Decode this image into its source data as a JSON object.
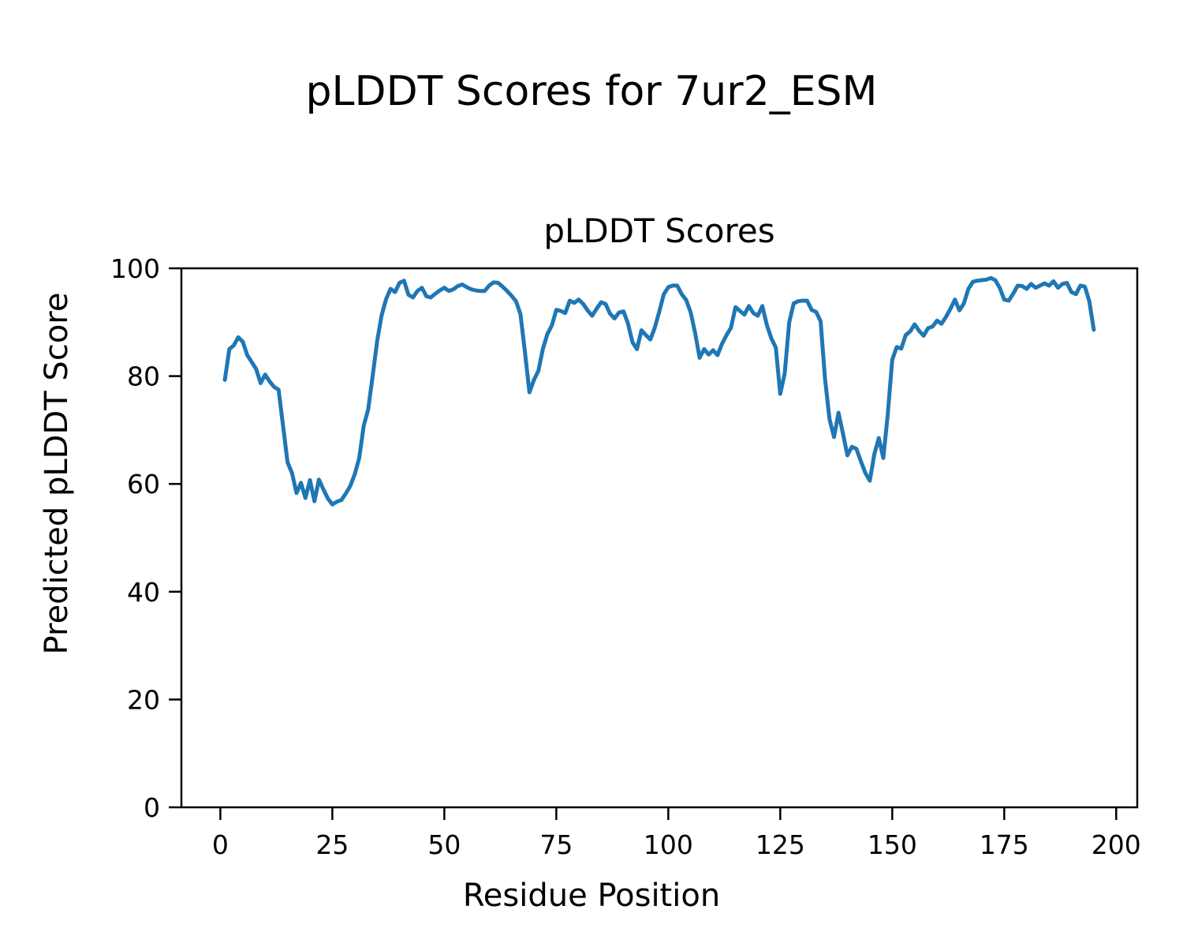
{
  "figure": {
    "background": "#ffffff",
    "text_color": "#000000"
  },
  "chart_data": {
    "type": "line",
    "suptitle": "pLDDT Scores for 7ur2_ESM",
    "title": "pLDDT Scores",
    "xlabel": "Residue Position",
    "ylabel": "Predicted pLDDT Score",
    "grid": false,
    "legend_position": "none",
    "xlim": [
      -8.7,
      204.7
    ],
    "ylim": [
      0,
      100
    ],
    "xticks": [
      0,
      25,
      50,
      75,
      100,
      125,
      150,
      175,
      200
    ],
    "yticks": [
      0,
      20,
      40,
      60,
      80,
      100
    ],
    "series": [
      {
        "name": "pLDDT",
        "color": "#1f77b4",
        "x_start": 1,
        "x_step": 1,
        "values": [
          79.3,
          85.0,
          85.7,
          87.2,
          86.4,
          83.9,
          82.6,
          81.3,
          78.7,
          80.3,
          79.0,
          78.0,
          77.5,
          70.8,
          64.0,
          62.0,
          58.3,
          60.2,
          57.4,
          60.7,
          56.8,
          60.8,
          59.0,
          57.3,
          56.2,
          56.7,
          57.0,
          58.2,
          59.6,
          61.8,
          64.8,
          70.8,
          73.8,
          80.0,
          86.5,
          91.3,
          94.3,
          96.2,
          95.6,
          97.3,
          97.7,
          95.1,
          94.6,
          95.8,
          96.4,
          94.8,
          94.6,
          95.3,
          95.9,
          96.4,
          95.8,
          96.1,
          96.7,
          97.0,
          96.5,
          96.1,
          95.9,
          95.8,
          95.8,
          96.8,
          97.4,
          97.3,
          96.6,
          95.8,
          94.9,
          93.9,
          91.5,
          84.5,
          77.0,
          79.3,
          81.0,
          85.0,
          87.8,
          89.4,
          92.3,
          92.1,
          91.7,
          94.0,
          93.6,
          94.2,
          93.4,
          92.2,
          91.2,
          92.5,
          93.7,
          93.4,
          91.6,
          90.7,
          91.8,
          92.0,
          89.8,
          86.3,
          85.0,
          88.5,
          87.6,
          86.8,
          89.0,
          92.0,
          95.2,
          96.5,
          96.8,
          96.8,
          95.2,
          94.1,
          91.8,
          88.0,
          83.4,
          85.0,
          84.0,
          84.8,
          83.9,
          86.0,
          87.6,
          89.0,
          92.8,
          92.1,
          91.4,
          93.0,
          91.7,
          91.2,
          93.0,
          89.5,
          87.0,
          85.3,
          76.7,
          80.5,
          90.0,
          93.5,
          93.9,
          94.0,
          94.0,
          92.3,
          91.9,
          90.2,
          79.5,
          72.0,
          68.7,
          73.2,
          69.3,
          65.3,
          66.9,
          66.5,
          64.2,
          62.0,
          60.6,
          65.5,
          68.5,
          64.8,
          73.0,
          83.0,
          85.4,
          85.1,
          87.6,
          88.3,
          89.6,
          88.4,
          87.5,
          88.9,
          89.2,
          90.3,
          89.7,
          91.0,
          92.5,
          94.2,
          92.2,
          93.5,
          96.2,
          97.5,
          97.7,
          97.8,
          97.9,
          98.2,
          97.8,
          96.4,
          94.2,
          94.0,
          95.3,
          96.8,
          96.7,
          96.2,
          97.1,
          96.4,
          96.8,
          97.2,
          96.8,
          97.6,
          96.4,
          97.1,
          97.3,
          95.6,
          95.2,
          96.8,
          96.6,
          93.9,
          88.6
        ]
      }
    ]
  }
}
